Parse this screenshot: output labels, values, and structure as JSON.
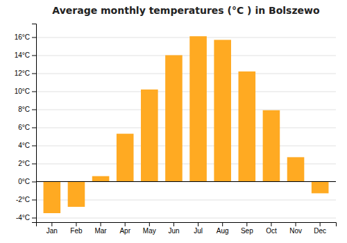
{
  "chart_data": {
    "type": "bar",
    "title": "Average monthly temperatures (°C ) in Bolszewo",
    "categories": [
      "Jan",
      "Feb",
      "Mar",
      "Apr",
      "May",
      "Jun",
      "Jul",
      "Aug",
      "Sep",
      "Oct",
      "Nov",
      "Dec"
    ],
    "values": [
      -3.5,
      -2.8,
      0.6,
      5.3,
      10.2,
      14.0,
      16.1,
      15.7,
      12.2,
      7.9,
      2.7,
      -1.3
    ],
    "color": "#FFAA22",
    "ylim": [
      -4.5,
      17.5
    ],
    "yticks": [
      {
        "value": -4,
        "label": "-4°C"
      },
      {
        "value": -2,
        "label": "-2°C"
      },
      {
        "value": 0,
        "label": "0°C"
      },
      {
        "value": 2,
        "label": "2°C"
      },
      {
        "value": 4,
        "label": "4°C"
      },
      {
        "value": 6,
        "label": "6°C"
      },
      {
        "value": 8,
        "label": "8°C"
      },
      {
        "value": 10,
        "label": "10°C"
      },
      {
        "value": 12,
        "label": "12°C"
      },
      {
        "value": 14,
        "label": "14°C"
      },
      {
        "value": 16,
        "label": "16°C"
      }
    ],
    "grid": true
  }
}
